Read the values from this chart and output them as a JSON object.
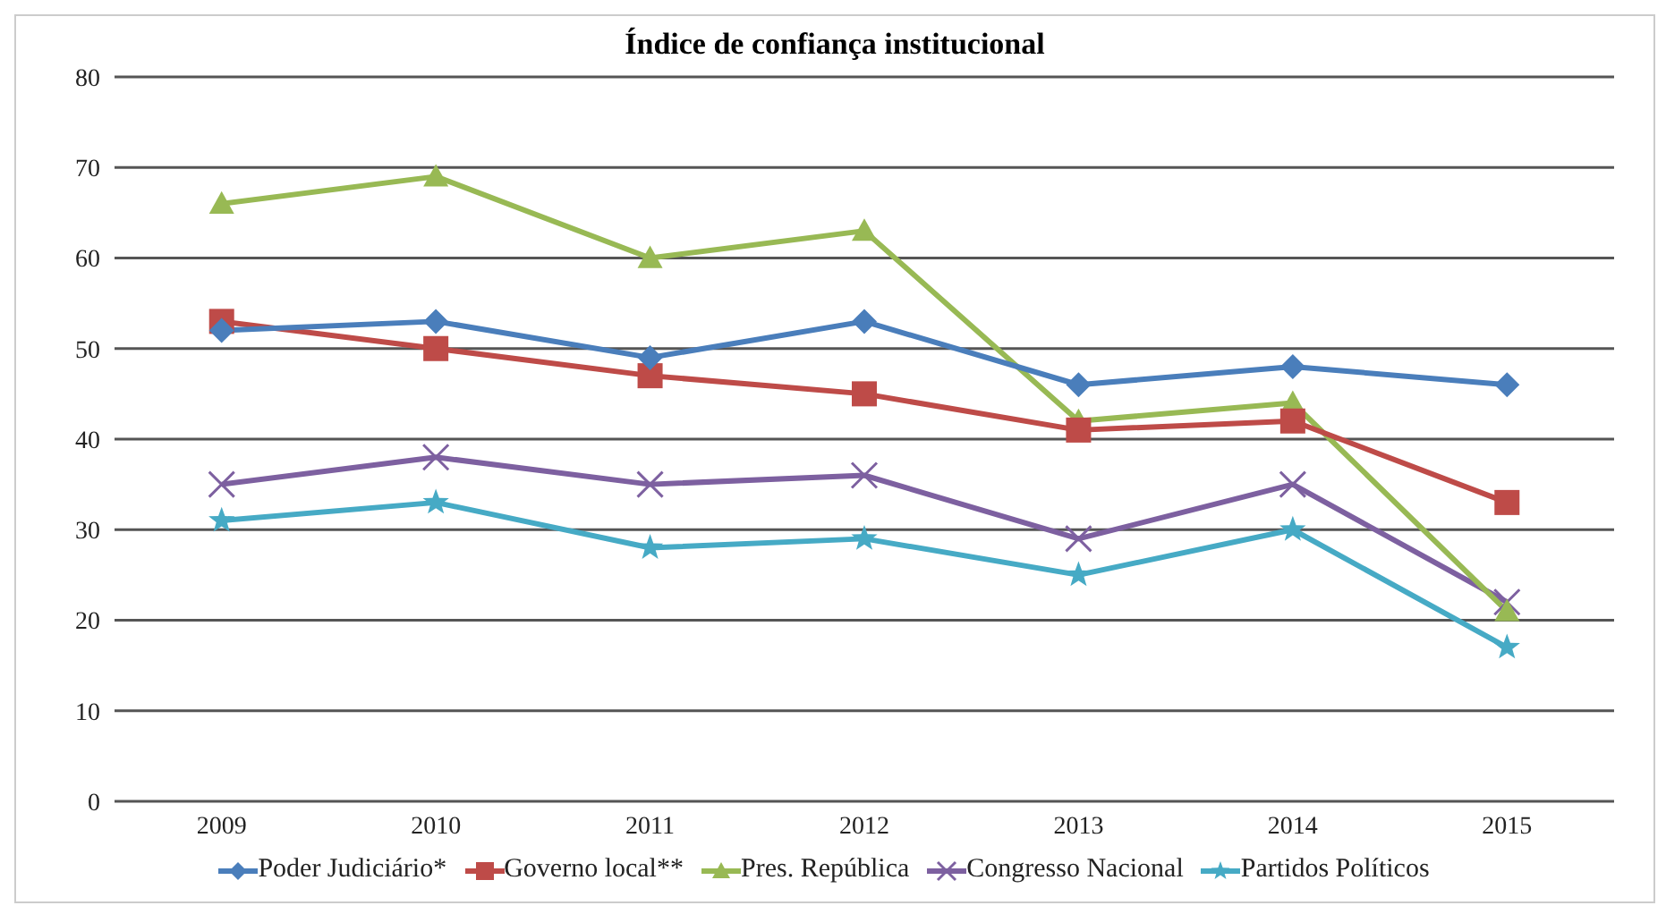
{
  "chart_data": {
    "type": "line",
    "title": "Índice de confiança institucional",
    "categories": [
      "2009",
      "2010",
      "2011",
      "2012",
      "2013",
      "2014",
      "2015"
    ],
    "series": [
      {
        "name": "Poder Judiciário*",
        "color": "#4a7ebb",
        "marker": "diamond",
        "values": [
          52,
          53,
          49,
          53,
          46,
          48,
          46
        ]
      },
      {
        "name": "Governo local**",
        "color": "#be4b48",
        "marker": "square",
        "values": [
          53,
          50,
          47,
          45,
          41,
          42,
          33
        ]
      },
      {
        "name": "Pres. República",
        "color": "#98b954",
        "marker": "triangle",
        "values": [
          66,
          69,
          60,
          63,
          42,
          44,
          21
        ]
      },
      {
        "name": "Congresso Nacional",
        "color": "#7d60a0",
        "marker": "cross",
        "values": [
          35,
          38,
          35,
          36,
          29,
          35,
          22
        ]
      },
      {
        "name": "Partidos Políticos",
        "color": "#46aac5",
        "marker": "star",
        "values": [
          31,
          33,
          28,
          29,
          25,
          30,
          17
        ]
      }
    ],
    "ylim": [
      0,
      80
    ],
    "yticks": [
      0,
      10,
      20,
      30,
      40,
      50,
      60,
      70,
      80
    ],
    "grid": "y",
    "legend": "bottom"
  }
}
